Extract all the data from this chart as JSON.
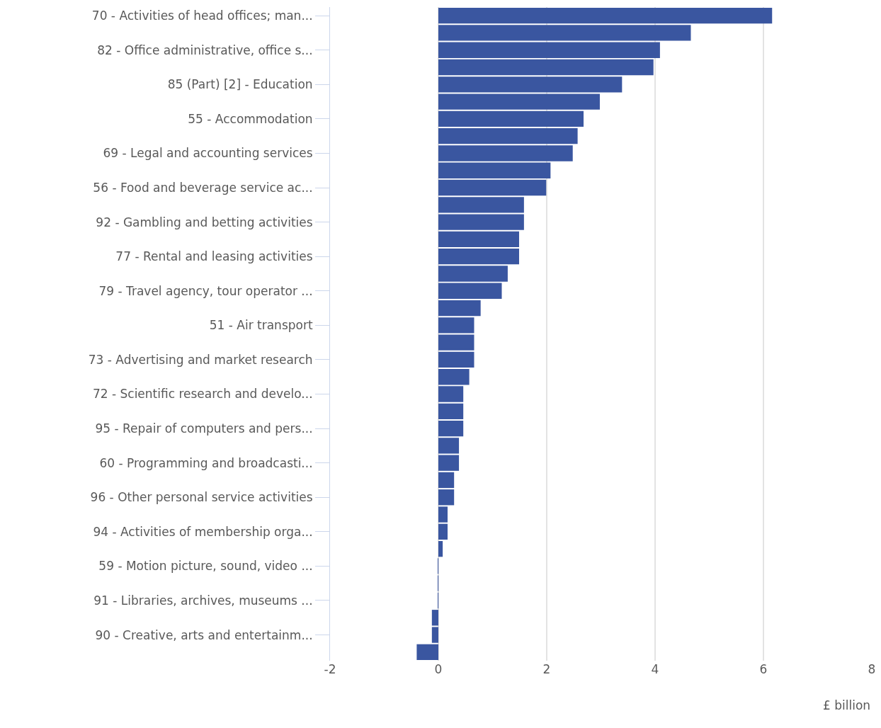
{
  "chart_data": {
    "type": "bar",
    "orientation": "horizontal",
    "xlabel": "£ billion",
    "categories": [
      "70 - Activities of head offices; man...",
      null,
      "82 - Office administrative, office s...",
      null,
      "85 (Part) [2] - Education",
      null,
      "55 - Accommodation",
      null,
      "69 - Legal and accounting services",
      null,
      "56 - Food and beverage service ac...",
      null,
      "92 - Gambling and betting activities",
      null,
      "77 - Rental and leasing activities",
      null,
      "79 - Travel agency, tour operator ...",
      null,
      "51 - Air transport",
      null,
      "73 - Advertising and market research",
      null,
      "72 - Scientific research and develo...",
      null,
      "95 - Repair of computers and pers...",
      null,
      "60 - Programming and broadcasti...",
      null,
      "96 - Other personal service activities",
      null,
      "94 - Activities of membership orga...",
      null,
      "59 - Motion picture, sound, video ...",
      null,
      "91 - Libraries, archives, museums ...",
      null,
      "90 - Creative, arts and entertainm...",
      null
    ],
    "values": [
      6.16,
      4.66,
      4.09,
      3.97,
      3.39,
      2.98,
      2.68,
      2.57,
      2.48,
      2.07,
      1.99,
      1.58,
      1.58,
      1.49,
      1.49,
      1.28,
      1.17,
      0.78,
      0.66,
      0.66,
      0.66,
      0.57,
      0.46,
      0.46,
      0.46,
      0.38,
      0.38,
      0.29,
      0.29,
      0.17,
      0.17,
      0.08,
      -0.01,
      -0.01,
      -0.01,
      -0.12,
      -0.12,
      -0.4
    ],
    "color": "#3a56a0",
    "xlim": [
      -2,
      8
    ],
    "xticks": [
      -2,
      0,
      2,
      4,
      6,
      8
    ],
    "grid": "x"
  }
}
